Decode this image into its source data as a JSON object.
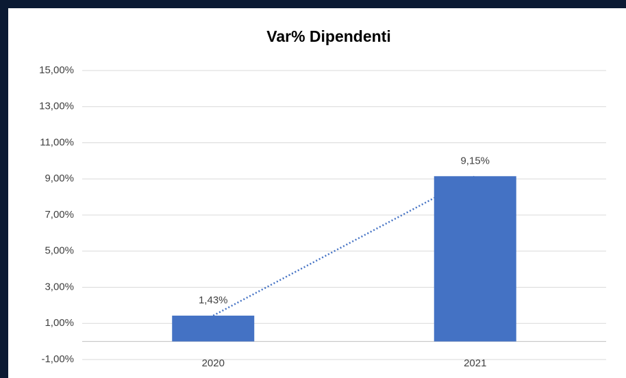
{
  "chart_data": {
    "type": "bar",
    "title": "Var% Dipendenti",
    "categories": [
      "2020",
      "2021"
    ],
    "values": [
      1.43,
      9.15
    ],
    "value_labels": [
      "1,43%",
      "9,15%"
    ],
    "color": "#4472c4",
    "trendline": true,
    "ylim": [
      -1,
      15
    ],
    "yticks": [
      {
        "value": -1,
        "label": "-1,00%"
      },
      {
        "value": 1,
        "label": "1,00%"
      },
      {
        "value": 3,
        "label": "3,00%"
      },
      {
        "value": 5,
        "label": "5,00%"
      },
      {
        "value": 7,
        "label": "7,00%"
      },
      {
        "value": 9,
        "label": "9,00%"
      },
      {
        "value": 11,
        "label": "11,00%"
      },
      {
        "value": 13,
        "label": "13,00%"
      },
      {
        "value": 15,
        "label": "15,00%"
      }
    ],
    "grid": true
  }
}
